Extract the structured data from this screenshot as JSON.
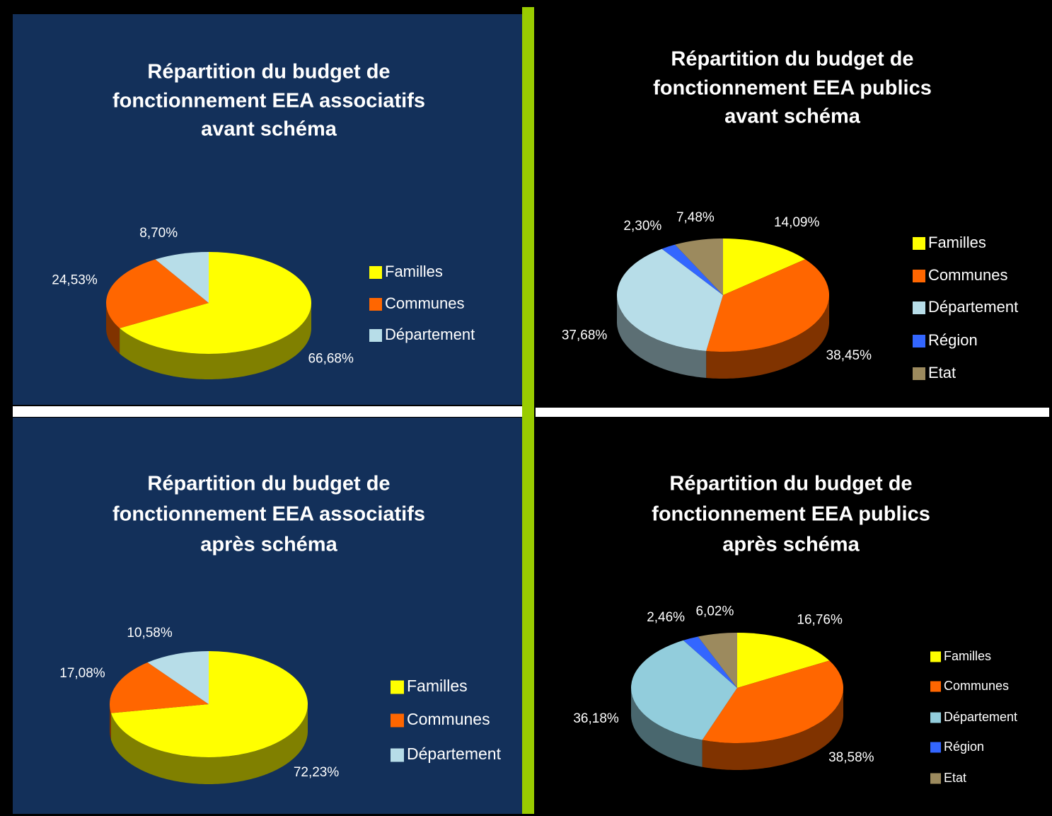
{
  "chart_data": [
    {
      "type": "pie3d",
      "title": [
        "Répartition du budget de",
        "fonctionnement EEA associatifs",
        "avant schéma"
      ],
      "background": "#13305a",
      "categories": [
        "Familles",
        "Communes",
        "Département"
      ],
      "values": [
        66.68,
        24.53,
        8.7
      ],
      "value_labels": [
        "66,68%",
        "24,53%",
        "8,70%"
      ],
      "colors": [
        "#ffff00",
        "#ff6600",
        "#b7dde8"
      ]
    },
    {
      "type": "pie3d",
      "title": [
        "Répartition du budget de",
        "fonctionnement EEA publics",
        "avant schéma"
      ],
      "background": "#000000",
      "categories": [
        "Familles",
        "Communes",
        "Département",
        "Région",
        "Etat"
      ],
      "values": [
        14.09,
        38.45,
        37.68,
        2.3,
        7.48
      ],
      "value_labels": [
        "14,09%",
        "38,45%",
        "37,68%",
        "2,30%",
        "7,48%"
      ],
      "colors": [
        "#ffff00",
        "#ff6600",
        "#b7dde8",
        "#3366ff",
        "#9c8a5e"
      ]
    },
    {
      "type": "pie3d",
      "title": [
        "Répartition du budget de",
        "fonctionnement EEA associatifs",
        "après schéma"
      ],
      "background": "#13305a",
      "categories": [
        "Familles",
        "Communes",
        "Département"
      ],
      "values": [
        72.23,
        17.08,
        10.58
      ],
      "value_labels": [
        "72,23%",
        "17,08%",
        "10,58%"
      ],
      "colors": [
        "#ffff00",
        "#ff6600",
        "#b7dde8"
      ]
    },
    {
      "type": "pie3d",
      "title": [
        "Répartition du budget de",
        "fonctionnement EEA publics",
        "après schéma"
      ],
      "background": "#000000",
      "categories": [
        "Familles",
        "Communes",
        "Département",
        "Région",
        "Etat"
      ],
      "values": [
        16.76,
        38.58,
        36.18,
        2.46,
        6.02
      ],
      "value_labels": [
        "16,76%",
        "38,58%",
        "36,18%",
        "2,46%",
        "6,02%"
      ],
      "colors": [
        "#ffff00",
        "#ff6600",
        "#92cddc",
        "#3366ff",
        "#9c8a5e"
      ]
    }
  ]
}
